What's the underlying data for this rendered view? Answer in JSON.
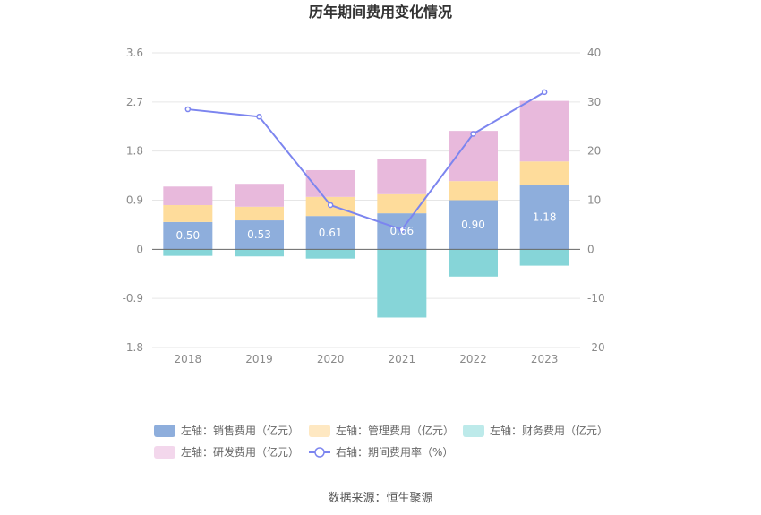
{
  "title": "历年期间费用变化情况",
  "source_text": "数据来源：恒生聚源",
  "colors": {
    "sales": "#8eaedc",
    "admin": "#fedc9b",
    "finance": "#86d5d8",
    "rnd": "#e8b9dc",
    "rate": "#7c85ef",
    "legend_finance": "#bdeaea",
    "legend_rnd": "#f3d7ec",
    "legend_admin": "#fee8c2"
  },
  "chart_data": {
    "type": "bar",
    "stacked": true,
    "categories": [
      "2018",
      "2019",
      "2020",
      "2021",
      "2022",
      "2023"
    ],
    "left_axis": {
      "ylim": [
        -1.8,
        3.6
      ],
      "ticks": [
        -1.8,
        -0.9,
        0,
        0.9,
        1.8,
        2.7,
        3.6
      ],
      "tick_labels": [
        "-1.8",
        "-0.9",
        "0",
        "0.9",
        "1.8",
        "2.7",
        "3.6"
      ]
    },
    "right_axis": {
      "ylim": [
        -20,
        40
      ],
      "ticks": [
        -20,
        -10,
        0,
        10,
        20,
        30,
        40
      ],
      "tick_labels": [
        "-20",
        "-10",
        "0",
        "10",
        "20",
        "30",
        "40"
      ]
    },
    "series": [
      {
        "key": "sales",
        "name": "左轴：销售费用（亿元）",
        "axis": "left",
        "type": "bar",
        "values": [
          0.5,
          0.53,
          0.61,
          0.66,
          0.9,
          1.18
        ],
        "data_labels": [
          "0.50",
          "0.53",
          "0.61",
          "0.66",
          "0.90",
          "1.18"
        ]
      },
      {
        "key": "admin",
        "name": "左轴：管理费用（亿元）",
        "axis": "left",
        "type": "bar",
        "values": [
          0.31,
          0.25,
          0.35,
          0.35,
          0.35,
          0.43
        ]
      },
      {
        "key": "finance",
        "name": "左轴：财务费用（亿元）",
        "axis": "left",
        "type": "bar",
        "values": [
          -0.12,
          -0.13,
          -0.17,
          -1.25,
          -0.5,
          -0.3
        ]
      },
      {
        "key": "rnd",
        "name": "左轴：研发费用（亿元）",
        "axis": "left",
        "type": "bar",
        "values": [
          0.34,
          0.42,
          0.49,
          0.65,
          0.92,
          1.11
        ]
      },
      {
        "key": "rate",
        "name": "右轴：期间费用率（%）",
        "axis": "right",
        "type": "line",
        "values": [
          28.5,
          27.0,
          9.0,
          4.0,
          23.5,
          32.0
        ]
      }
    ],
    "legend_position": "bottom",
    "grid": true
  }
}
